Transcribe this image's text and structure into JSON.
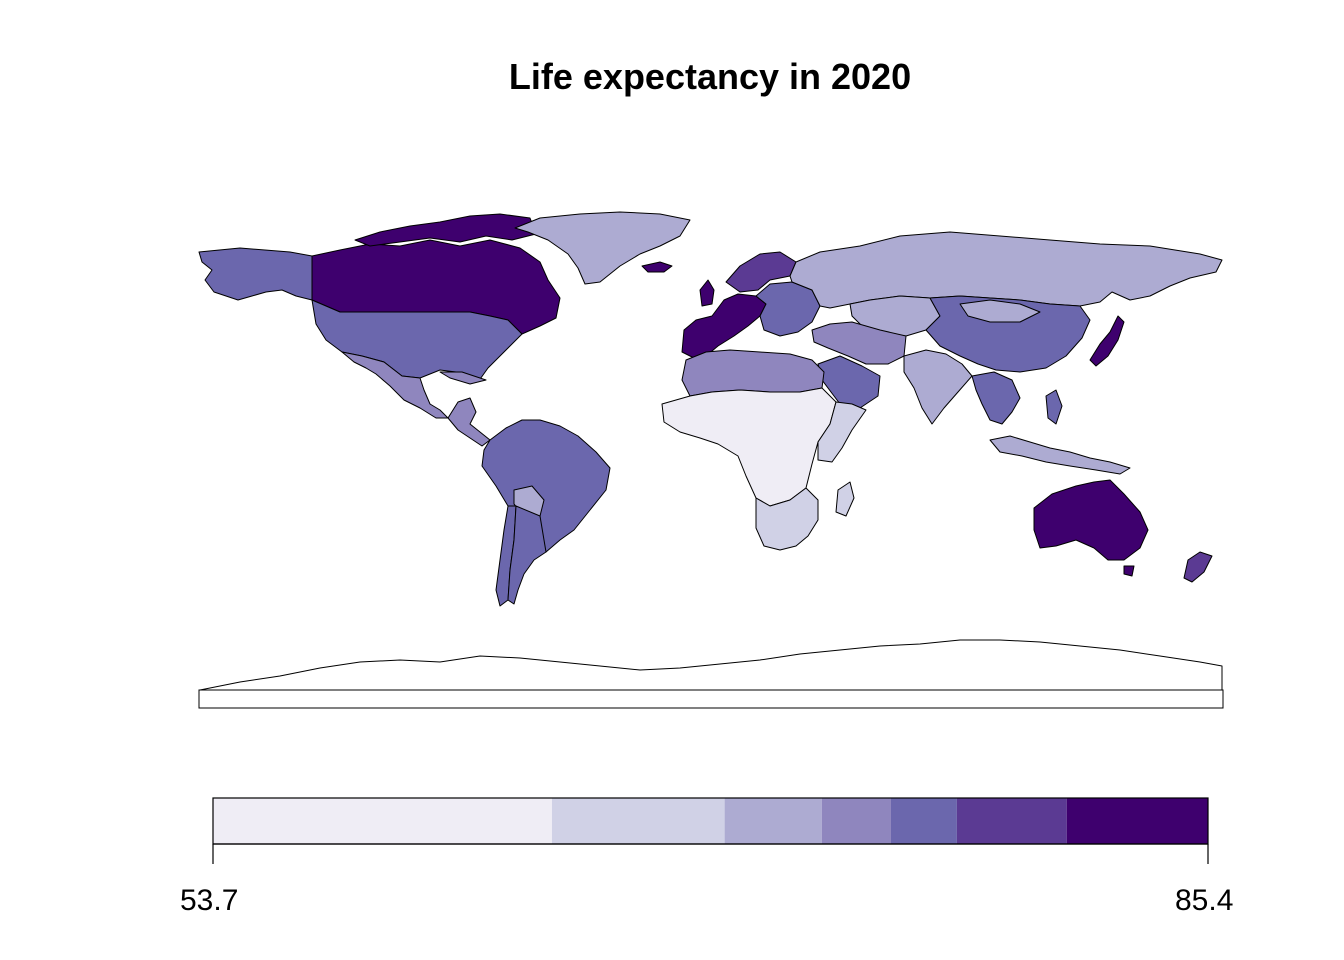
{
  "title": "Life expectancy in 2020",
  "legend": {
    "min_label": "53.7",
    "max_label": "85.4",
    "min": 53.7,
    "max": 85.4,
    "classes": [
      {
        "from": 53.7,
        "to": 64.5,
        "color": "#efedf5"
      },
      {
        "from": 64.5,
        "to": 70.0,
        "color": "#d0d1e6"
      },
      {
        "from": 70.0,
        "to": 73.1,
        "color": "#adabd2"
      },
      {
        "from": 73.1,
        "to": 75.3,
        "color": "#8f86be"
      },
      {
        "from": 75.3,
        "to": 77.4,
        "color": "#6b67ad"
      },
      {
        "from": 77.4,
        "to": 80.9,
        "color": "#5b3a93"
      },
      {
        "from": 80.9,
        "to": 85.4,
        "color": "#3e006e"
      }
    ]
  },
  "regions": [
    {
      "name": "Canada",
      "class": 6
    },
    {
      "name": "United States",
      "class": 4
    },
    {
      "name": "Alaska",
      "class": 4
    },
    {
      "name": "Greenland",
      "class": 2
    },
    {
      "name": "Mexico",
      "class": 3
    },
    {
      "name": "Central America",
      "class": 3
    },
    {
      "name": "South America",
      "class": 4
    },
    {
      "name": "Bolivia",
      "class": 2
    },
    {
      "name": "Chile",
      "class": 4
    },
    {
      "name": "Argentina",
      "class": 4
    },
    {
      "name": "Western Europe",
      "class": 6
    },
    {
      "name": "Scandinavia",
      "class": 5
    },
    {
      "name": "Eastern Europe",
      "class": 4
    },
    {
      "name": "Russia",
      "class": 2
    },
    {
      "name": "Central Asia",
      "class": 2
    },
    {
      "name": "China",
      "class": 4
    },
    {
      "name": "Japan",
      "class": 6
    },
    {
      "name": "India",
      "class": 2
    },
    {
      "name": "Middle East",
      "class": 3
    },
    {
      "name": "Arabian Peninsula",
      "class": 4
    },
    {
      "name": "Southeast Asia",
      "class": 4
    },
    {
      "name": "Indonesia",
      "class": 2
    },
    {
      "name": "North Africa",
      "class": 3
    },
    {
      "name": "Sub-Saharan Africa",
      "class": 0
    },
    {
      "name": "East Africa",
      "class": 1
    },
    {
      "name": "Southern Africa",
      "class": 1
    },
    {
      "name": "Madagascar",
      "class": 1
    },
    {
      "name": "Australia",
      "class": 6
    },
    {
      "name": "New Zealand",
      "class": 5
    },
    {
      "name": "Antarctica",
      "class": null
    }
  ]
}
